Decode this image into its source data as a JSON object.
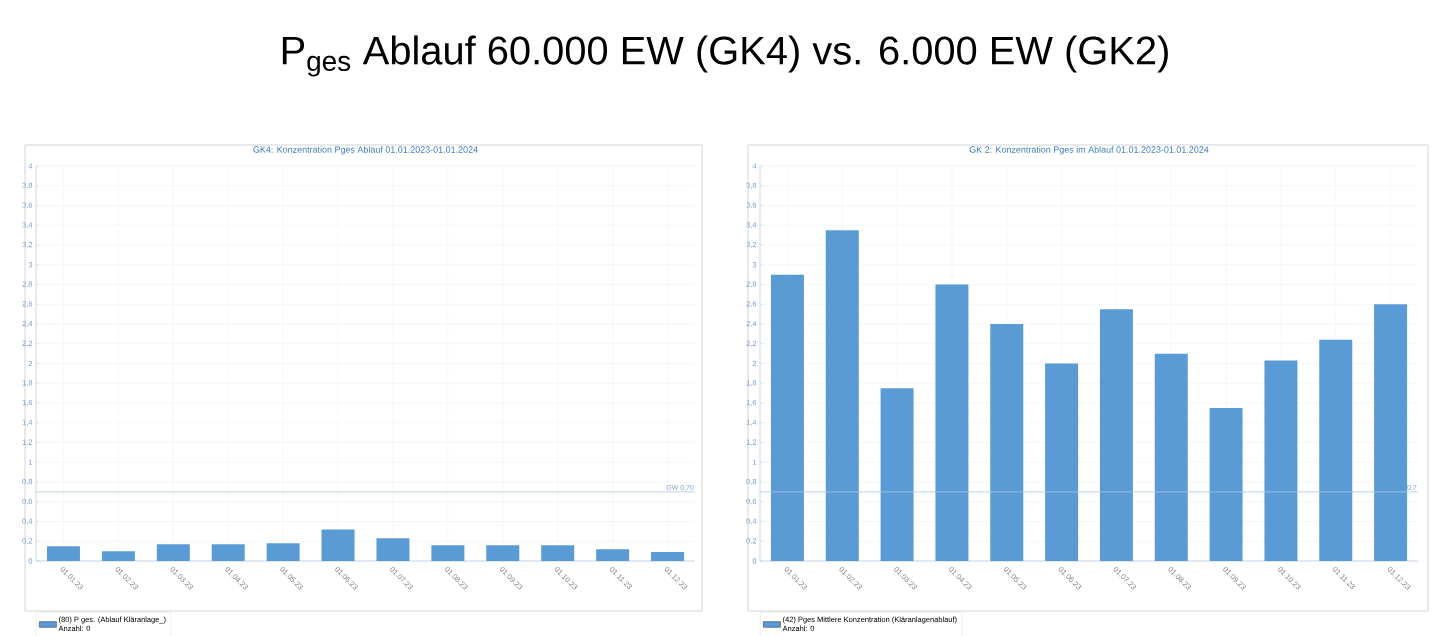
{
  "chart_data": [
    {
      "type": "bar",
      "title": "GK4: Konzentration Pges Ablauf 01.01.2023-01.01.2024",
      "annotations": [
        "P$_{ges}$ Ablauf 60.000 EW (GK4) vs. 6.000 EW (GK2)",
        "Anzahl: 0"
      ],
      "categories": [
        "01.01.23",
        "01.02.23",
        "01.03.23",
        "01.04.23",
        "01.05.23",
        "01.06.23",
        "01.07.23",
        "01.08.23",
        "01.09.23",
        "01.10.23",
        "01.11.23",
        "01.12.23"
      ],
      "series": [
        {
          "name": "(80) P ges. (Ablauf Kläranlage_)",
          "color": "#5b9bd5",
          "values": [
            0.15,
            0.1,
            0.17,
            0.17,
            0.18,
            0.32,
            0.23,
            0.16,
            0.16,
            0.16,
            0.12,
            0.09
          ]
        }
      ],
      "ylim": [
        0,
        4
      ],
      "yticks": [
        0,
        {
          "value": 0.2,
          "label": "0,2"
        },
        {
          "value": 0.4,
          "label": "0,4"
        },
        {
          "value": 0.6,
          "label": "0,6"
        },
        {
          "value": 0.8,
          "label": "0,8"
        },
        1,
        {
          "value": 1.2,
          "label": "1,2"
        },
        {
          "value": 1.4,
          "label": "1,4"
        },
        {
          "value": 1.6,
          "label": "1,6"
        },
        {
          "value": 1.8,
          "label": "1,8"
        },
        2,
        {
          "value": 2.2,
          "label": "2,2"
        },
        {
          "value": 2.4,
          "label": "2,4"
        },
        {
          "value": 2.6,
          "label": "2,6"
        },
        {
          "value": 2.8,
          "label": "2,8"
        },
        3,
        {
          "value": 3.2,
          "label": "3,2"
        },
        {
          "value": 3.4,
          "label": "3,4"
        },
        {
          "value": 3.6,
          "label": "3,6"
        },
        {
          "value": 3.8,
          "label": "3,8"
        },
        4
      ],
      "ref_lines": [
        {
          "axis": "y",
          "value": 0.7,
          "label": "GW 0,70",
          "color": "#a9c4e0"
        }
      ],
      "grid": true,
      "legend": "bottom left"
    },
    {
      "type": "bar",
      "title": "GK 2: Konzentration Pges im Ablauf 01.01.2023-01.01.2024",
      "annotations": [
        "Anzahl: 0"
      ],
      "categories": [
        "01.01.23",
        "01.02.23",
        "01.03.23",
        "01.04.23",
        "01.05.23",
        "01.06.23",
        "01.07.23",
        "01.08.23",
        "01.09.23",
        "01.10.23",
        "01.11.23",
        "01.12.23"
      ],
      "series": [
        {
          "name": "(42) Pges Mittlere Konzentration (Kläranlagenablauf)",
          "color": "#5b9bd5",
          "values": [
            2.9,
            3.35,
            1.75,
            2.8,
            2.4,
            2.0,
            2.55,
            2.1,
            1.55,
            2.03,
            2.24,
            2.6
          ]
        }
      ],
      "ylim": [
        0,
        4
      ],
      "yticks": [
        0,
        {
          "value": 0.2,
          "label": "0,2"
        },
        {
          "value": 0.4,
          "label": "0,4"
        },
        {
          "value": 0.6,
          "label": "0,6"
        },
        {
          "value": 0.8,
          "label": "0,8"
        },
        1,
        {
          "value": 1.2,
          "label": "1,2"
        },
        {
          "value": 1.4,
          "label": "1,4"
        },
        {
          "value": 1.6,
          "label": "1,6"
        },
        {
          "value": 1.8,
          "label": "1,8"
        },
        2,
        {
          "value": 2.2,
          "label": "2,2"
        },
        {
          "value": 2.4,
          "label": "2,4"
        },
        {
          "value": 2.6,
          "label": "2,6"
        },
        {
          "value": 2.8,
          "label": "2,8"
        },
        3,
        {
          "value": 3.2,
          "label": "3,2"
        },
        {
          "value": 3.4,
          "label": "3,4"
        },
        {
          "value": 3.6,
          "label": "3,6"
        },
        {
          "value": 3.8,
          "label": "3,8"
        },
        4
      ],
      "ref_lines": [
        {
          "axis": "y",
          "value": 0.7,
          "label": "0,7",
          "color": "#a9c4e0"
        }
      ],
      "grid": true,
      "legend": "bottom left"
    }
  ]
}
